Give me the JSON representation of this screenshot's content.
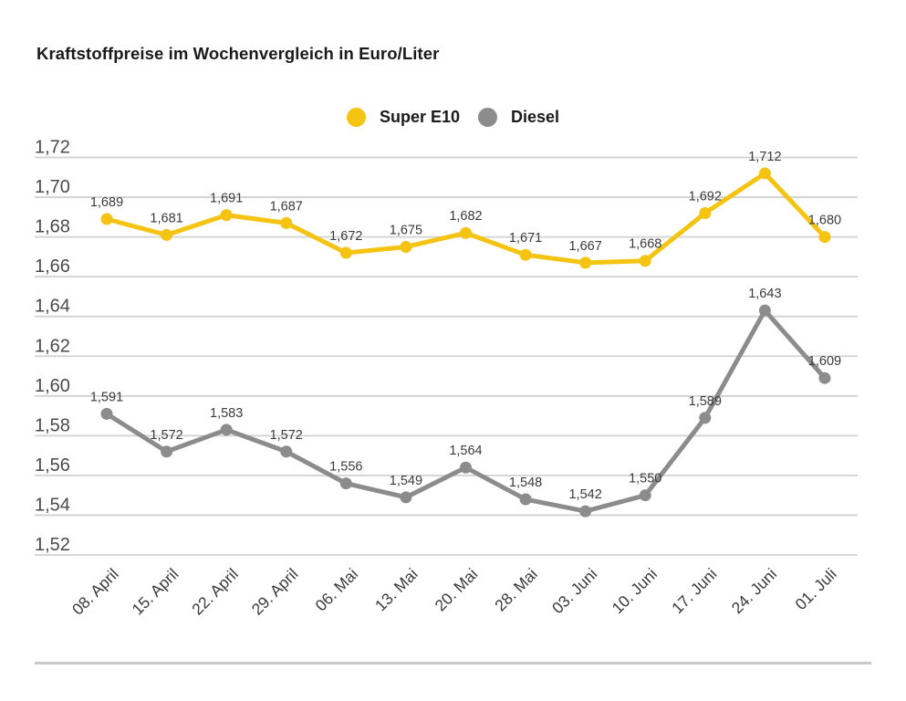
{
  "title": "Kraftstoffpreise im Wochenvergleich in Euro/Liter",
  "chart_data": {
    "type": "line",
    "title": "Kraftstoffpreise im Wochenvergleich in Euro/Liter",
    "unit": "Euro/Liter",
    "categories": [
      "08. April",
      "15. April",
      "22. April",
      "29. April",
      "06. Mai",
      "13. Mai",
      "20. Mai",
      "28. Mai",
      "03. Juni",
      "10. Juni",
      "17. Juni",
      "24. Juni",
      "01. Juli"
    ],
    "series": [
      {
        "name": "Super E10",
        "slug": "super-e10",
        "color": "#F5C413",
        "values": [
          1.689,
          1.681,
          1.691,
          1.687,
          1.672,
          1.675,
          1.682,
          1.671,
          1.667,
          1.668,
          1.692,
          1.712,
          1.68
        ],
        "point_labels": [
          "1,689",
          "1,681",
          "1,691",
          "1,687",
          "1,672",
          "1,675",
          "1,682",
          "1,671",
          "1,667",
          "1,668",
          "1,692",
          "1,712",
          "1,680"
        ]
      },
      {
        "name": "Diesel",
        "slug": "diesel",
        "color": "#8C8C8C",
        "values": [
          1.591,
          1.572,
          1.583,
          1.572,
          1.556,
          1.549,
          1.564,
          1.548,
          1.542,
          1.55,
          1.589,
          1.643,
          1.609
        ],
        "point_labels": [
          "1,591",
          "1,572",
          "1,583",
          "1,572",
          "1,556",
          "1,549",
          "1,564",
          "1,548",
          "1,542",
          "1,550",
          "1,589",
          "1,643",
          "1,609"
        ]
      }
    ],
    "ylim": [
      1.52,
      1.72
    ],
    "ytick_step": 0.02,
    "ytick_labels": [
      "1,72",
      "1,70",
      "1,68",
      "1,66",
      "1,64",
      "1,62",
      "1,60",
      "1,58",
      "1,56",
      "1,54",
      "1,52"
    ],
    "grid": true,
    "legend_position": "top-center",
    "value_labels_shown": true
  },
  "colors": {
    "grid": "#D2D2D2",
    "axis_text": "#4A4A4A",
    "value_text": "#3A3A3A",
    "title_text": "#1A1A1A",
    "divider": "#C9C9C9",
    "background": "#FFFFFF"
  }
}
